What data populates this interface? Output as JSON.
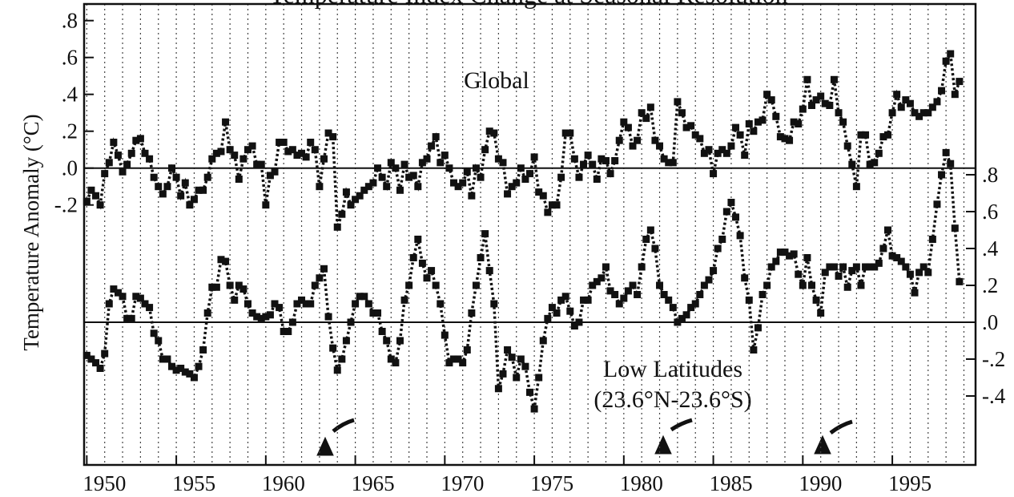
{
  "chart_data": {
    "type": "line",
    "title": "Temperature Index Change at Seasonal Resolution",
    "ylabel": "Temperature Anomaly (°C)",
    "annotations": [
      "Global",
      "Low Latitudes",
      "(23.6°N-23.6°S)"
    ],
    "x": [
      1950,
      1950.25,
      1950.5,
      1950.75,
      1951,
      1951.25,
      1951.5,
      1951.75,
      1952,
      1952.25,
      1952.5,
      1952.75,
      1953,
      1953.25,
      1953.5,
      1953.75,
      1954,
      1954.25,
      1954.5,
      1954.75,
      1955,
      1955.25,
      1955.5,
      1955.75,
      1956,
      1956.25,
      1956.5,
      1956.75,
      1957,
      1957.25,
      1957.5,
      1957.75,
      1958,
      1958.25,
      1958.5,
      1958.75,
      1959,
      1959.25,
      1959.5,
      1959.75,
      1960,
      1960.25,
      1960.5,
      1960.75,
      1961,
      1961.25,
      1961.5,
      1961.75,
      1962,
      1962.25,
      1962.5,
      1962.75,
      1963,
      1963.25,
      1963.5,
      1963.75,
      1964,
      1964.25,
      1964.5,
      1964.75,
      1965,
      1965.25,
      1965.5,
      1965.75,
      1966,
      1966.25,
      1966.5,
      1966.75,
      1967,
      1967.25,
      1967.5,
      1967.75,
      1968,
      1968.25,
      1968.5,
      1968.75,
      1969,
      1969.25,
      1969.5,
      1969.75,
      1970,
      1970.25,
      1970.5,
      1970.75,
      1971,
      1971.25,
      1971.5,
      1971.75,
      1972,
      1972.25,
      1972.5,
      1972.75,
      1973,
      1973.25,
      1973.5,
      1973.75,
      1974,
      1974.25,
      1974.5,
      1974.75,
      1975,
      1975.25,
      1975.5,
      1975.75,
      1976,
      1976.25,
      1976.5,
      1976.75,
      1977,
      1977.25,
      1977.5,
      1977.75,
      1978,
      1978.25,
      1978.5,
      1978.75,
      1979,
      1979.25,
      1979.5,
      1979.75,
      1980,
      1980.25,
      1980.5,
      1980.75,
      1981,
      1981.25,
      1981.5,
      1981.75,
      1982,
      1982.25,
      1982.5,
      1982.75,
      1983,
      1983.25,
      1983.5,
      1983.75,
      1984,
      1984.25,
      1984.5,
      1984.75,
      1985,
      1985.25,
      1985.5,
      1985.75,
      1986,
      1986.25,
      1986.5,
      1986.75,
      1987,
      1987.25,
      1987.5,
      1987.75,
      1988,
      1988.25,
      1988.5,
      1988.75,
      1989,
      1989.25,
      1989.5,
      1989.75,
      1990,
      1990.25,
      1990.5,
      1990.75,
      1991,
      1991.25,
      1991.5,
      1991.75,
      1992,
      1992.25,
      1992.5,
      1992.75,
      1993,
      1993.25,
      1993.5,
      1993.75,
      1994,
      1994.25,
      1994.5,
      1994.75,
      1995,
      1995.25,
      1995.5,
      1995.75,
      1996,
      1996.25,
      1996.5,
      1996.75,
      1997,
      1997.25,
      1997.5,
      1997.75,
      1998,
      1998.25,
      1998.5,
      1998.75
    ],
    "series": [
      {
        "color": "#111111",
        "axis": "y",
        "values": [
          -0.18,
          -0.12,
          -0.15,
          -0.2,
          -0.03,
          0.03,
          0.14,
          0.07,
          -0.02,
          0.02,
          0.08,
          0.15,
          0.16,
          0.08,
          0.05,
          -0.05,
          -0.1,
          -0.14,
          -0.1,
          0.0,
          -0.05,
          -0.15,
          -0.08,
          -0.2,
          -0.17,
          -0.12,
          -0.12,
          -0.05,
          0.05,
          0.08,
          0.09,
          0.25,
          0.1,
          0.07,
          -0.06,
          0.05,
          0.1,
          0.12,
          0.02,
          0.02,
          -0.2,
          -0.04,
          -0.02,
          0.14,
          0.14,
          0.09,
          0.1,
          0.07,
          0.08,
          0.06,
          0.14,
          0.1,
          -0.1,
          0.05,
          0.19,
          0.17,
          -0.32,
          -0.25,
          -0.13,
          -0.2,
          -0.17,
          -0.15,
          -0.12,
          -0.1,
          -0.08,
          0.0,
          -0.05,
          -0.1,
          0.03,
          0.0,
          -0.12,
          0.02,
          -0.05,
          -0.04,
          -0.1,
          0.03,
          0.05,
          0.12,
          0.17,
          0.03,
          0.07,
          0.0,
          -0.08,
          -0.1,
          -0.08,
          -0.02,
          -0.15,
          0.0,
          -0.05,
          0.1,
          0.2,
          0.19,
          0.05,
          0.03,
          -0.14,
          -0.1,
          -0.08,
          0.0,
          -0.06,
          -0.03,
          0.06,
          -0.13,
          -0.15,
          -0.24,
          -0.2,
          -0.2,
          -0.05,
          0.19,
          0.19,
          0.05,
          -0.05,
          0.02,
          0.07,
          0.02,
          -0.06,
          0.05,
          0.04,
          -0.03,
          0.04,
          0.15,
          0.25,
          0.22,
          0.12,
          0.15,
          0.3,
          0.27,
          0.33,
          0.15,
          0.12,
          0.05,
          0.03,
          0.03,
          0.36,
          0.3,
          0.22,
          0.23,
          0.18,
          0.16,
          0.08,
          0.1,
          -0.03,
          0.08,
          0.1,
          0.08,
          0.12,
          0.22,
          0.18,
          0.07,
          0.24,
          0.2,
          0.25,
          0.26,
          0.4,
          0.37,
          0.28,
          0.17,
          0.16,
          0.15,
          0.25,
          0.24,
          0.32,
          0.48,
          0.34,
          0.37,
          0.39,
          0.35,
          0.34,
          0.48,
          0.3,
          0.25,
          0.12,
          0.02,
          -0.1,
          0.18,
          0.18,
          0.02,
          0.03,
          0.08,
          0.17,
          0.18,
          0.3,
          0.4,
          0.33,
          0.37,
          0.35,
          0.3,
          0.28,
          0.3,
          0.3,
          0.33,
          0.36,
          0.42,
          0.58,
          0.62,
          0.4,
          0.47
        ]
      },
      {
        "color": "#111111",
        "axis": "y2",
        "values": [
          -0.18,
          -0.2,
          -0.22,
          -0.25,
          -0.17,
          0.1,
          0.18,
          0.16,
          0.14,
          0.02,
          0.02,
          0.14,
          0.13,
          0.1,
          0.08,
          -0.06,
          -0.1,
          -0.2,
          -0.2,
          -0.24,
          -0.26,
          -0.25,
          -0.27,
          -0.28,
          -0.3,
          -0.24,
          -0.15,
          0.05,
          0.19,
          0.19,
          0.34,
          0.33,
          0.2,
          0.12,
          0.2,
          0.18,
          0.1,
          0.05,
          0.03,
          0.02,
          0.03,
          0.04,
          0.1,
          0.08,
          -0.05,
          -0.05,
          0.0,
          0.1,
          0.12,
          0.1,
          0.1,
          0.2,
          0.24,
          0.29,
          0.03,
          -0.14,
          -0.26,
          -0.2,
          -0.1,
          0.0,
          0.1,
          0.14,
          0.14,
          0.1,
          0.05,
          0.05,
          -0.05,
          -0.1,
          -0.2,
          -0.22,
          -0.1,
          0.12,
          0.2,
          0.35,
          0.45,
          0.32,
          0.24,
          0.28,
          0.2,
          0.1,
          -0.07,
          -0.22,
          -0.2,
          -0.2,
          -0.22,
          -0.15,
          0.05,
          0.2,
          0.35,
          0.48,
          0.28,
          0.1,
          -0.36,
          -0.28,
          -0.15,
          -0.19,
          -0.3,
          -0.2,
          -0.24,
          -0.38,
          -0.47,
          -0.3,
          -0.1,
          0.02,
          0.08,
          0.05,
          0.12,
          0.14,
          0.06,
          -0.02,
          0.0,
          0.12,
          0.12,
          0.2,
          0.22,
          0.24,
          0.3,
          0.17,
          0.15,
          0.1,
          0.13,
          0.17,
          0.2,
          0.15,
          0.3,
          0.45,
          0.5,
          0.4,
          0.2,
          0.15,
          0.12,
          0.08,
          0.0,
          0.02,
          0.04,
          0.08,
          0.1,
          0.15,
          0.2,
          0.23,
          0.28,
          0.4,
          0.45,
          0.6,
          0.65,
          0.57,
          0.47,
          0.24,
          0.12,
          -0.15,
          -0.03,
          0.15,
          0.2,
          0.3,
          0.33,
          0.38,
          0.38,
          0.36,
          0.37,
          0.26,
          0.2,
          0.35,
          0.2,
          0.12,
          0.05,
          0.27,
          0.3,
          0.3,
          0.25,
          0.3,
          0.19,
          0.28,
          0.3,
          0.2,
          0.3,
          0.3,
          0.3,
          0.32,
          0.4,
          0.5,
          0.36,
          0.35,
          0.33,
          0.3,
          0.26,
          0.16,
          0.27,
          0.3,
          0.27,
          0.45,
          0.64,
          0.8,
          0.92,
          0.86,
          0.51,
          0.22
        ]
      }
    ],
    "xlim": [
      1949.85,
      1999.65
    ],
    "xticks": [
      1950,
      1955,
      1960,
      1965,
      1970,
      1975,
      1980,
      1985,
      1990,
      1995
    ],
    "xminorticks": [
      1950,
      1951,
      1952,
      1953,
      1954,
      1955,
      1956,
      1957,
      1958,
      1959,
      1960,
      1961,
      1962,
      1963,
      1964,
      1965,
      1966,
      1967,
      1968,
      1969,
      1970,
      1971,
      1972,
      1973,
      1974,
      1975,
      1976,
      1977,
      1978,
      1979,
      1980,
      1981,
      1982,
      1983,
      1984,
      1985,
      1986,
      1987,
      1988,
      1989,
      1990,
      1991,
      1992,
      1993,
      1994,
      1995,
      1996,
      1997,
      1998,
      1999
    ],
    "ylim": [
      -1.61,
      0.89
    ],
    "yticks": [
      {
        "value": 0.8,
        "label": ".8"
      },
      {
        "value": 0.6,
        "label": ".6"
      },
      {
        "value": 0.4,
        "label": ".4"
      },
      {
        "value": 0.2,
        "label": ".2"
      },
      {
        "value": 0,
        "label": ".0"
      },
      {
        "value": -0.2,
        "label": "-.2"
      }
    ],
    "y2lim": [
      -0.774,
      1.726
    ],
    "y2ticks": [
      {
        "value": 0.8,
        "label": ".8"
      },
      {
        "value": 0.6,
        "label": ".6"
      },
      {
        "value": 0.4,
        "label": ".4"
      },
      {
        "value": 0.2,
        "label": ".2"
      },
      {
        "value": 0,
        "label": ".0"
      },
      {
        "value": -0.2,
        "label": "-.2"
      },
      {
        "value": -0.4,
        "label": "-.4"
      }
    ],
    "grid": true
  }
}
